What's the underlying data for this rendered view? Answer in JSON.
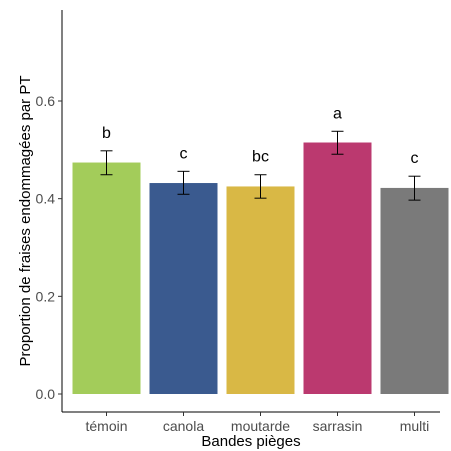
{
  "chart_data": {
    "type": "bar",
    "xlabel": "Bandes pièges",
    "ylabel": "Proportion de fraises endommagées par PT",
    "ylim": [
      0,
      0.8
    ],
    "yticks": [
      0.0,
      0.2,
      0.4,
      0.6
    ],
    "ytick_labels": [
      "0.0",
      "0.2",
      "0.4",
      "0.6"
    ],
    "grid": false,
    "legend": "none",
    "categories": [
      "témoin",
      "canola",
      "moutarde",
      "sarrasin",
      "multi"
    ],
    "values": [
      0.474,
      0.432,
      0.425,
      0.515,
      0.422
    ],
    "err_low": [
      0.449,
      0.409,
      0.401,
      0.491,
      0.397
    ],
    "err_high": [
      0.498,
      0.456,
      0.449,
      0.538,
      0.446
    ],
    "labels": [
      "b",
      "c",
      "bc",
      "a",
      "c"
    ],
    "colors": [
      "#a3cc5a",
      "#3a5a8f",
      "#d9b845",
      "#bb396f",
      "#7a7a7a"
    ]
  }
}
